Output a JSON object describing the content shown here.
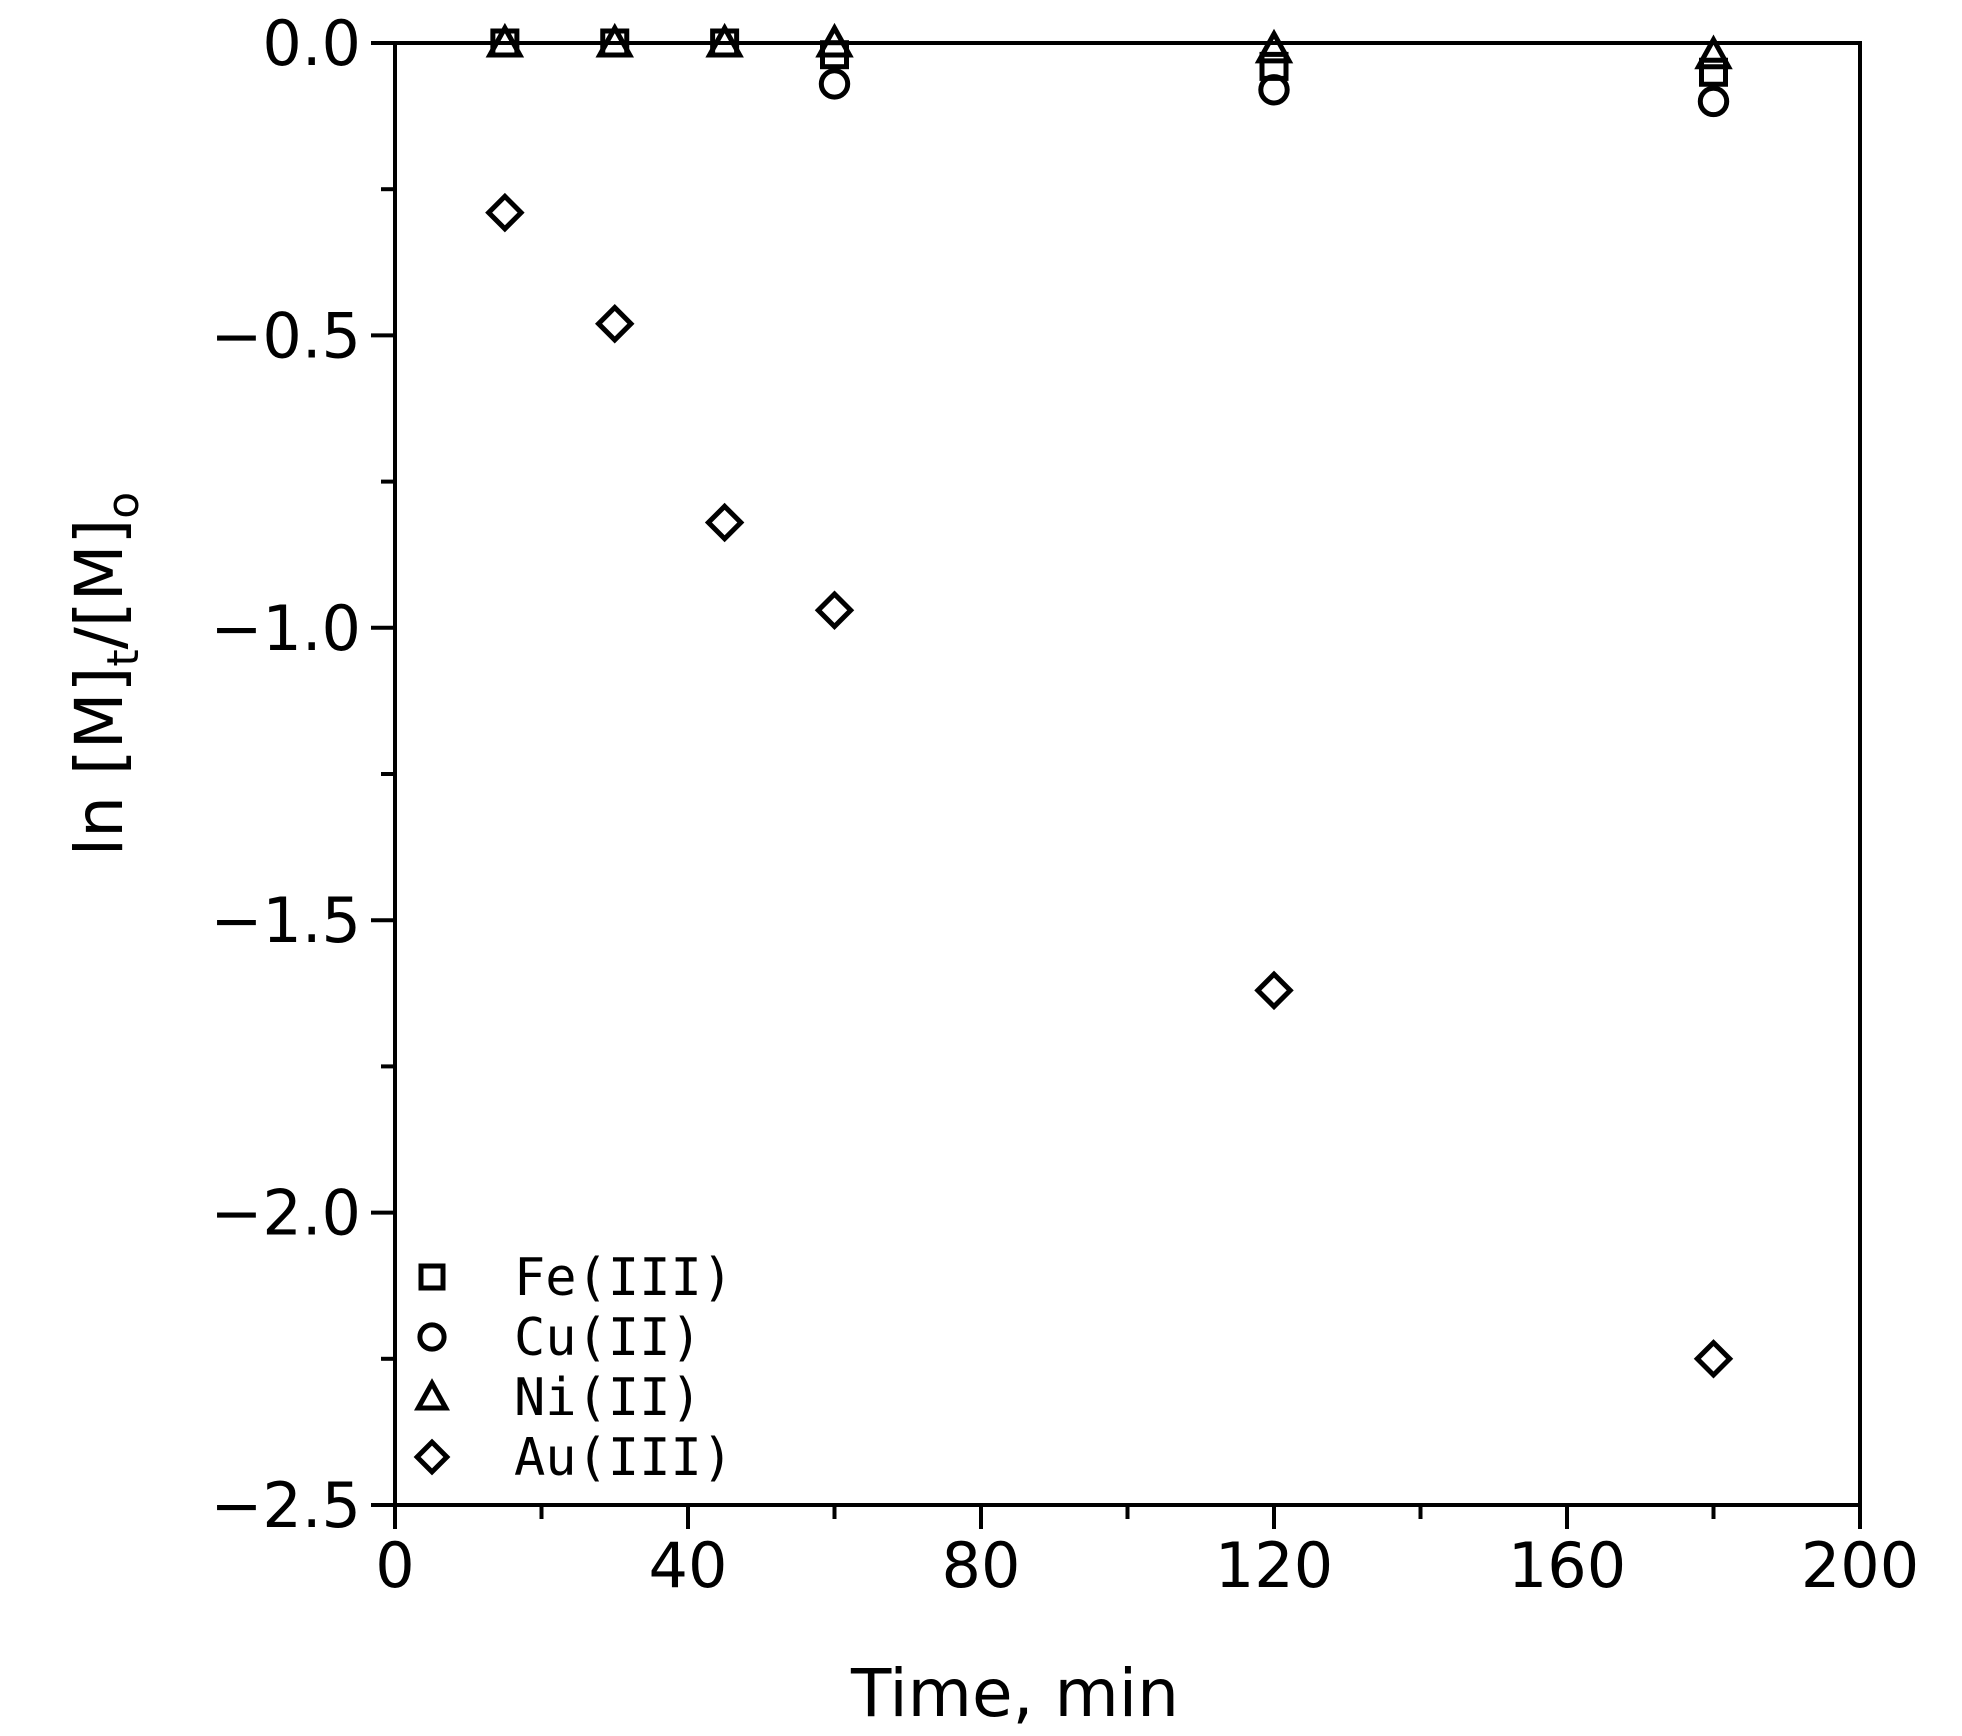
{
  "chart_data": {
    "type": "scatter",
    "xlabel": "Time, min",
    "ylabel": {
      "prefix": "ln  [M]",
      "sub1": "t",
      "mid": "/[M]",
      "sub2": "o"
    },
    "xlim": [
      0,
      200
    ],
    "ylim": [
      -2.5,
      0.0
    ],
    "xticks": [
      0,
      40,
      80,
      120,
      160,
      200
    ],
    "xtick_labels": [
      "0",
      "40",
      "80",
      "120",
      "160",
      "200"
    ],
    "yticks": [
      0.0,
      -0.5,
      -1.0,
      -1.5,
      -2.0,
      -2.5
    ],
    "ytick_labels": [
      "0.0",
      "−0.5",
      "−1.0",
      "−1.5",
      "−2.0",
      "−2.5"
    ],
    "grid": false,
    "legend_position": "bottom-left",
    "series": [
      {
        "name": "Fe(III)",
        "marker": "square",
        "x": [
          15,
          30,
          45,
          60,
          120,
          180
        ],
        "y": [
          0.0,
          0.0,
          0.0,
          -0.02,
          -0.04,
          -0.05
        ]
      },
      {
        "name": "Cu(II)",
        "marker": "circle",
        "x": [
          60,
          120,
          180
        ],
        "y": [
          -0.07,
          -0.08,
          -0.1
        ]
      },
      {
        "name": "Ni(II)",
        "marker": "triangle",
        "x": [
          15,
          30,
          45,
          60,
          120,
          180
        ],
        "y": [
          0.0,
          0.0,
          0.0,
          0.0,
          -0.01,
          -0.02
        ]
      },
      {
        "name": "Au(III)",
        "marker": "diamond",
        "x": [
          15,
          30,
          45,
          60,
          120,
          180
        ],
        "y": [
          -0.29,
          -0.48,
          -0.82,
          -0.97,
          -1.62,
          -2.25
        ]
      }
    ]
  }
}
